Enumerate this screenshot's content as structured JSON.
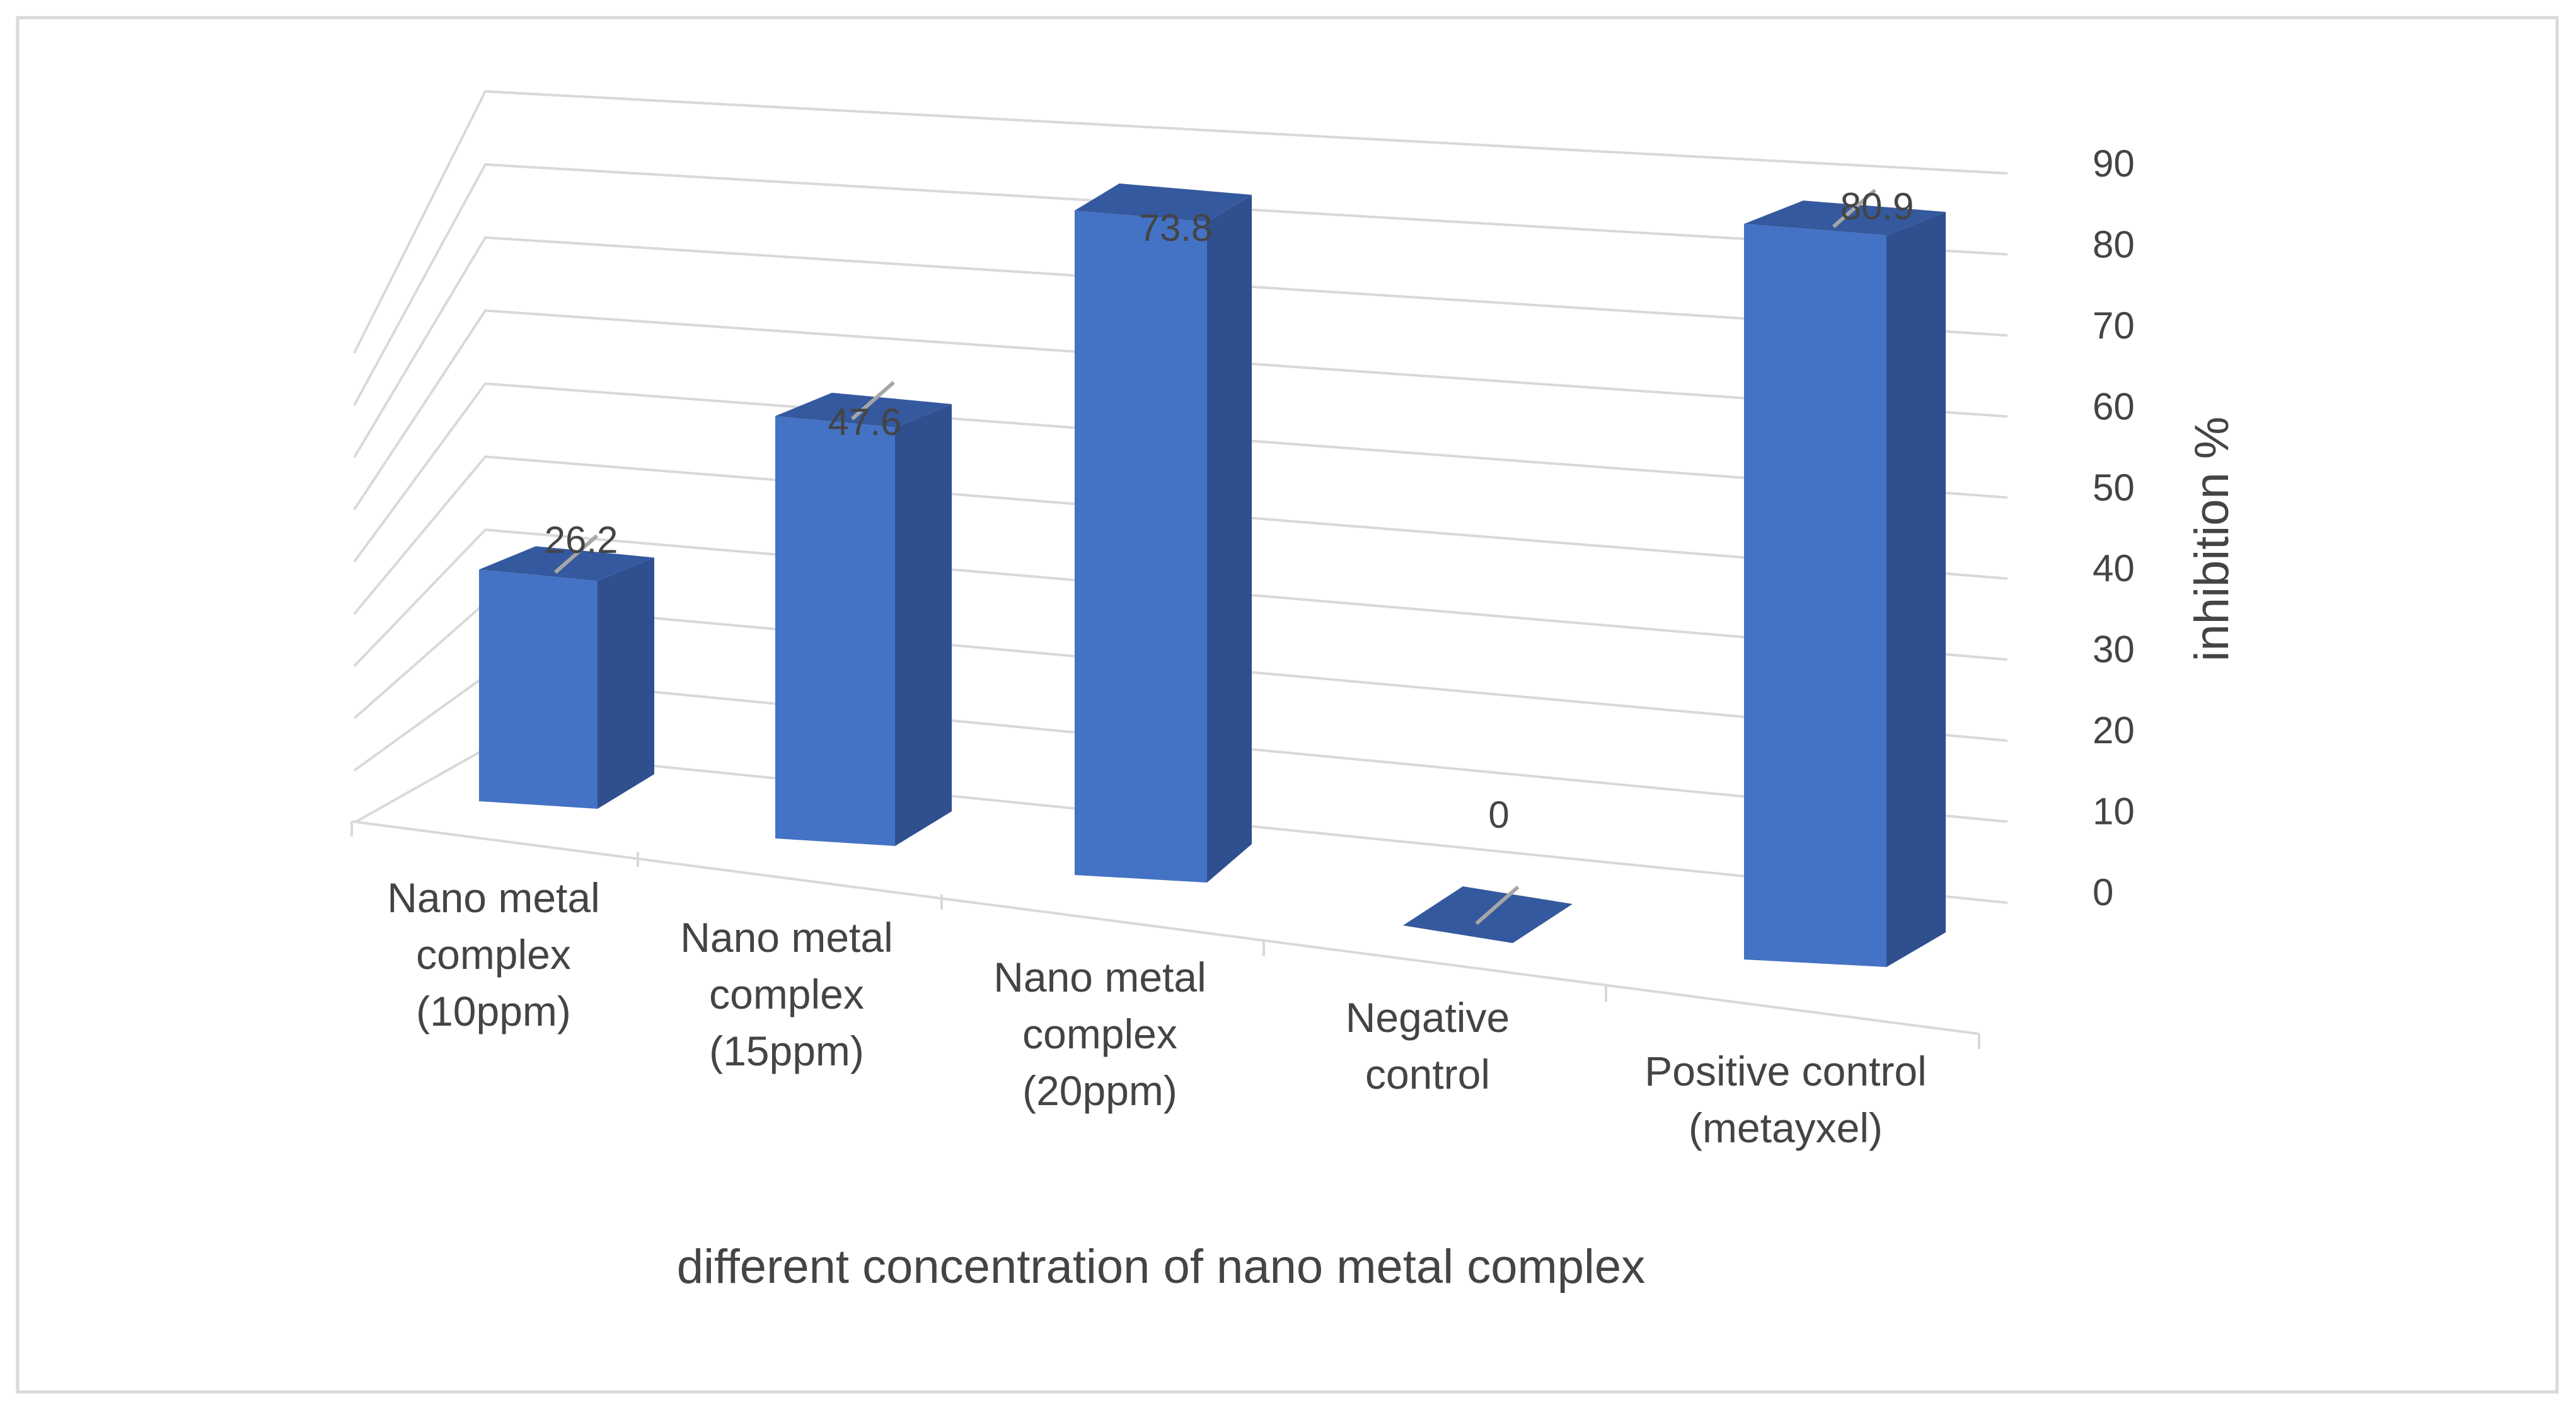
{
  "chart_data": {
    "type": "bar",
    "style": "3d-column",
    "categories": [
      [
        "Nano metal",
        "complex",
        "(10ppm)"
      ],
      [
        "Nano metal",
        "complex",
        "(15ppm)"
      ],
      [
        "Nano metal",
        "complex",
        "(20ppm)"
      ],
      [
        "Negative",
        "control"
      ],
      [
        "Positive control",
        "(metayxel)"
      ]
    ],
    "values": [
      26.2,
      47.6,
      73.8,
      0,
      80.9
    ],
    "data_labels": [
      "26.2",
      "47.6",
      "73.8",
      "0",
      "80.9"
    ],
    "title": "",
    "xlabel": "different concentration of nano metal complex",
    "ylabel": "inhibition %",
    "ylim": [
      0,
      90
    ],
    "yticks": [
      0,
      10,
      20,
      30,
      40,
      50,
      60,
      70,
      80,
      90
    ],
    "ytick_labels": [
      "0",
      "10",
      "20",
      "30",
      "40",
      "50",
      "60",
      "70",
      "80",
      "90"
    ],
    "y_axis_side": "right",
    "grid": true,
    "legend": "none",
    "colors": {
      "bar_front": "#4472C4",
      "bar_side": "#2F4F8F",
      "bar_top": "#35599E",
      "grid": "#D9D9D9",
      "frame": "#D9D9D9",
      "text": "#444444",
      "leader": "#A6A6A6"
    }
  }
}
